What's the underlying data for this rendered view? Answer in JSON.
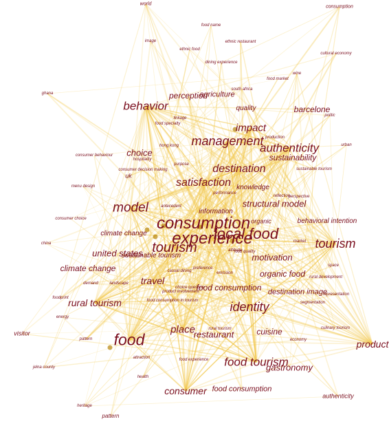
{
  "colors": {
    "label": "#7a0e1e",
    "edge": "#f2c94c",
    "node": "#b8860b"
  },
  "terms": {
    "world": "world",
    "consumption_top": "consumption",
    "food_name": "food name",
    "image": "image",
    "ethnic_restaurant": "ethnic restaurant",
    "ethnic_food": "ethnic food",
    "cultural_economy": "cultural economy",
    "dining_experience": "dining experience",
    "wine": "wine",
    "food_market": "food market",
    "south_africa": "south africa",
    "ghana": "ghana",
    "agriculture": "agriculture",
    "perception": "perception",
    "behavior": "behavior",
    "quality": "quality",
    "barcelone": "barcelone",
    "politic": "politic",
    "linkage": "linkage",
    "food_specialty": "food specialty",
    "impact": "impact",
    "production": "production",
    "management": "management",
    "urban": "urban",
    "hong_kong": "hong kong",
    "authenticity": "authenticity",
    "sustainability": "sustainability",
    "consumer_behaviour": "consumer behaviour",
    "choice": "choice",
    "hospitality": "hospitality",
    "purpose": "purpose",
    "consumer_decision_making": "consumer decision making",
    "destination": "destination",
    "sustainable_tourism": "sustainable tourism",
    "menu_design": "menu design",
    "uk": "uk",
    "satisfaction": "satisfaction",
    "knowledge": "knowledge",
    "performance": "performance",
    "reflection": "reflection",
    "perspective": "perspective",
    "structural_model": "structural model",
    "model": "model",
    "antecedent": "antecedent",
    "information": "information",
    "consumer_choice": "consumer choice",
    "consumption": "consumption",
    "organic": "organic",
    "behavioral_intention": "behavioral intention",
    "climate_change_a": "climate change",
    "local_food": "local food",
    "experience": "experience",
    "tourism": "tourism",
    "china": "china",
    "tourism_small": "tourism",
    "market": "market",
    "united_states": "united states",
    "sustainable_tourism_2": "sustainable tourism",
    "attitude": "attitude",
    "food_quality": "food quality",
    "motivation": "motivation",
    "climate_change": "climate change",
    "casual_dining": "casual dining",
    "preference": "preference",
    "organic_food": "organic food",
    "space": "space",
    "demand": "demand",
    "landscape": "landscape",
    "travel": "travel",
    "emission": "emission",
    "choice_question": "choice question",
    "rural_development": "rural development",
    "food_print": "foodprint",
    "food_consumption": "food consumption",
    "destination_image": "destination image",
    "representation": "representation",
    "rural_tourism": "rural tourism",
    "product_involvement": "product involvement",
    "identity": "identity",
    "segmentation": "segmentation",
    "food_consumption_in_tourism": "food consumption in tourism",
    "energy": "energy",
    "culinary_tourism": "culinary tourism",
    "visitor": "visitor",
    "place": "place",
    "rural_tourism_2": "rural tourism",
    "restaurant": "restaurant",
    "cuisine": "cuisine",
    "pattern_small": "pattern",
    "food": "food",
    "economy": "economy",
    "product": "product",
    "attraction": "attraction",
    "food_experience": "food experience",
    "food_tourism": "food tourism",
    "gastronomy": "gastronomy",
    "jelna_county": "jelna county",
    "health": "health",
    "consumer": "consumer",
    "food_consumption_2": "food consumption",
    "authenticity_2": "authenticity",
    "heritage": "heritage",
    "pattern": "pattern"
  }
}
